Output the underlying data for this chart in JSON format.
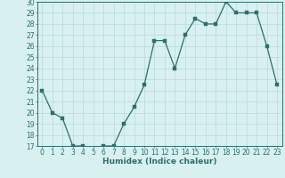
{
  "x": [
    0,
    1,
    2,
    3,
    4,
    5,
    6,
    7,
    8,
    9,
    10,
    11,
    12,
    13,
    14,
    15,
    16,
    17,
    18,
    19,
    20,
    21,
    22,
    23
  ],
  "y": [
    22,
    20,
    19.5,
    17,
    17,
    16.5,
    17,
    17,
    19,
    20.5,
    22.5,
    26.5,
    26.5,
    24,
    27,
    28.5,
    28,
    28,
    30,
    29,
    29,
    29,
    26,
    22.5
  ],
  "line_color": "#2d6e6e",
  "marker_color": "#2d6e6e",
  "bg_color": "#d9f0f0",
  "grid_color": "#b8dada",
  "xlabel": "Humidex (Indice chaleur)",
  "ylim": [
    17,
    30
  ],
  "xlim": [
    -0.5,
    23.5
  ],
  "yticks": [
    17,
    18,
    19,
    20,
    21,
    22,
    23,
    24,
    25,
    26,
    27,
    28,
    29,
    30
  ],
  "xticks": [
    0,
    1,
    2,
    3,
    4,
    5,
    6,
    7,
    8,
    9,
    10,
    11,
    12,
    13,
    14,
    15,
    16,
    17,
    18,
    19,
    20,
    21,
    22,
    23
  ],
  "tick_fontsize": 5.5,
  "label_fontsize": 6.5
}
